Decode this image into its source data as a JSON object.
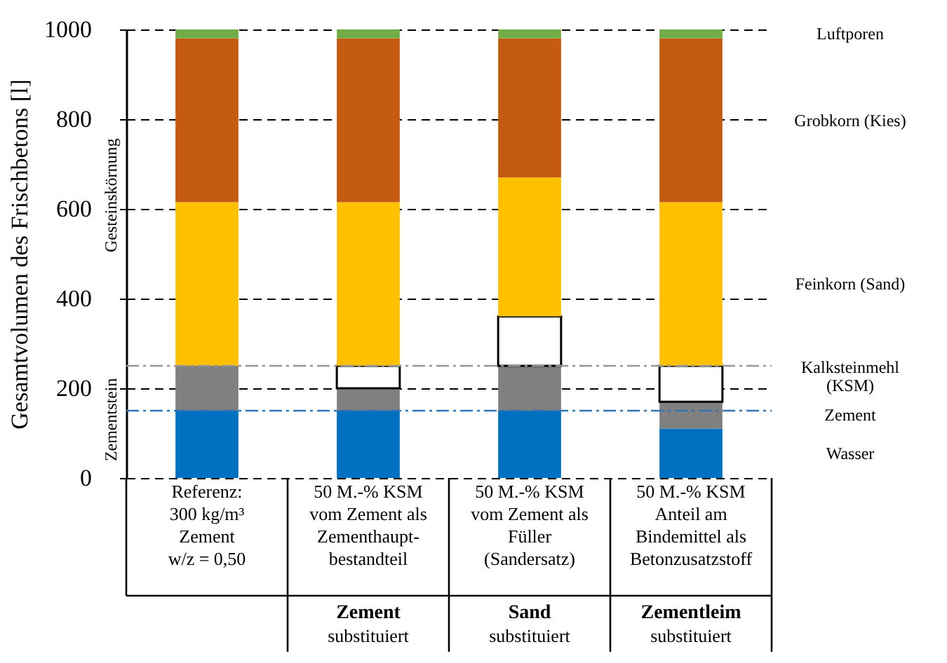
{
  "chart_data": {
    "type": "bar",
    "stacked": true,
    "ylabel": "Gesamtvolumen des Frischbetons [l]",
    "categories": [
      "Referenz:\n300 kg/m³\nZement\nw/z = 0,50",
      "50 M.-%  KSM\nvom Zement  als\nZementhaupt-\nbestandteil",
      "50 M.-%  KSM\nvom Zement  als\nFüller\n(Sandersatz)",
      "50 M.-%  KSM\nAnteil am\nBindemittel als\nBetonzusatzstoff"
    ],
    "series": [
      {
        "name": "Wasser",
        "color": "#0070c0",
        "values": [
          150,
          150,
          150,
          110
        ]
      },
      {
        "name": "Zement",
        "color": "#808080",
        "values": [
          100,
          50,
          100,
          60
        ]
      },
      {
        "name": "Kalksteinmehl\n(KSM)",
        "color": "#ffffff",
        "values": [
          null,
          50,
          110,
          80
        ]
      },
      {
        "name": "Feinkorn (Sand)",
        "color": "#ffc000",
        "values": [
          365,
          365,
          310,
          365
        ]
      },
      {
        "name": "Grobkorn (Kies)",
        "color": "#c55a11",
        "values": [
          365,
          365,
          310,
          365
        ]
      },
      {
        "name": "Luftporen",
        "color": "#70ad47",
        "values": [
          20,
          20,
          20,
          20
        ]
      }
    ],
    "ylim": [
      0,
      1000
    ],
    "yticks": [
      0,
      200,
      400,
      600,
      800,
      {
        "value": 1000,
        "label": "1000"
      }
    ],
    "grid": "y",
    "ref_lines": [
      {
        "axis": "y",
        "value": 250,
        "color": "#969696",
        "line_style": "dashed"
      },
      {
        "axis": "y",
        "value": 150,
        "color": "#2e75b6",
        "line_style": "dashed"
      }
    ],
    "annotations": [
      "Gesteinskörnung",
      "Zementstein",
      "Zement",
      "substituiert",
      "Sand",
      "substituiert",
      "Zementleim",
      "substituiert"
    ]
  }
}
